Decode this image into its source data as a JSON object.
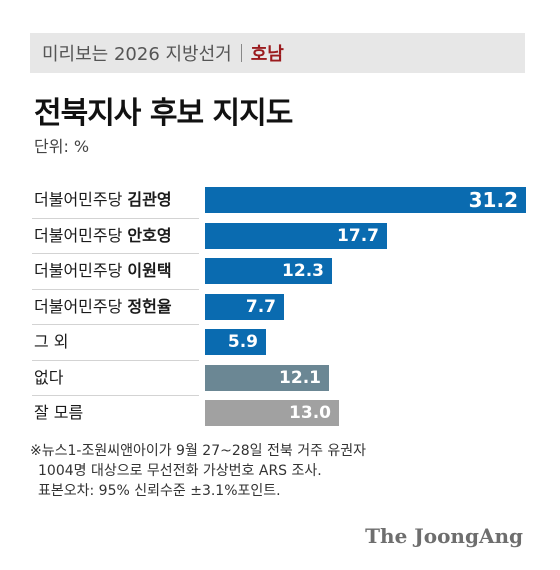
{
  "header": {
    "series_label": "미리보는 2026 지방선거",
    "region_label": "호남",
    "region_color": "#9b1b1e"
  },
  "title": "전북지사 후보 지지도",
  "unit_label": "단위: %",
  "chart_data": {
    "type": "bar",
    "orientation": "horizontal",
    "title": "전북지사 후보 지지도",
    "unit": "%",
    "xlim": [
      0,
      31.2
    ],
    "grid": false,
    "legend": "none",
    "items": [
      {
        "party": "더불어민주당",
        "name": "김관영",
        "value": 31.2,
        "value_label": "31.2",
        "color": "#0a6bb0"
      },
      {
        "party": "더불어민주당",
        "name": "안호영",
        "value": 17.7,
        "value_label": "17.7",
        "color": "#0a6bb0"
      },
      {
        "party": "더불어민주당",
        "name": "이원택",
        "value": 12.3,
        "value_label": "12.3",
        "color": "#0a6bb0"
      },
      {
        "party": "더불어민주당",
        "name": "정헌율",
        "value": 7.7,
        "value_label": "7.7",
        "color": "#0a6bb0"
      },
      {
        "party": "",
        "name": "그 외",
        "value": 5.9,
        "value_label": "5.9",
        "color": "#0a6bb0"
      },
      {
        "party": "",
        "name": "없다",
        "value": 12.1,
        "value_label": "12.1",
        "color": "#6b8794"
      },
      {
        "party": "",
        "name": "잘 모름",
        "value": 13.0,
        "value_label": "13.0",
        "color": "#a1a1a1"
      }
    ]
  },
  "footnote": {
    "line1": "※뉴스1-조원씨앤아이가 9월 27~28일 전북 거주 유권자",
    "line2": "1004명 대상으로 무선전화 가상번호 ARS 조사.",
    "line3": "표본오차: 95% 신뢰수준 ±3.1%포인트."
  },
  "logo": "The JoongAng"
}
